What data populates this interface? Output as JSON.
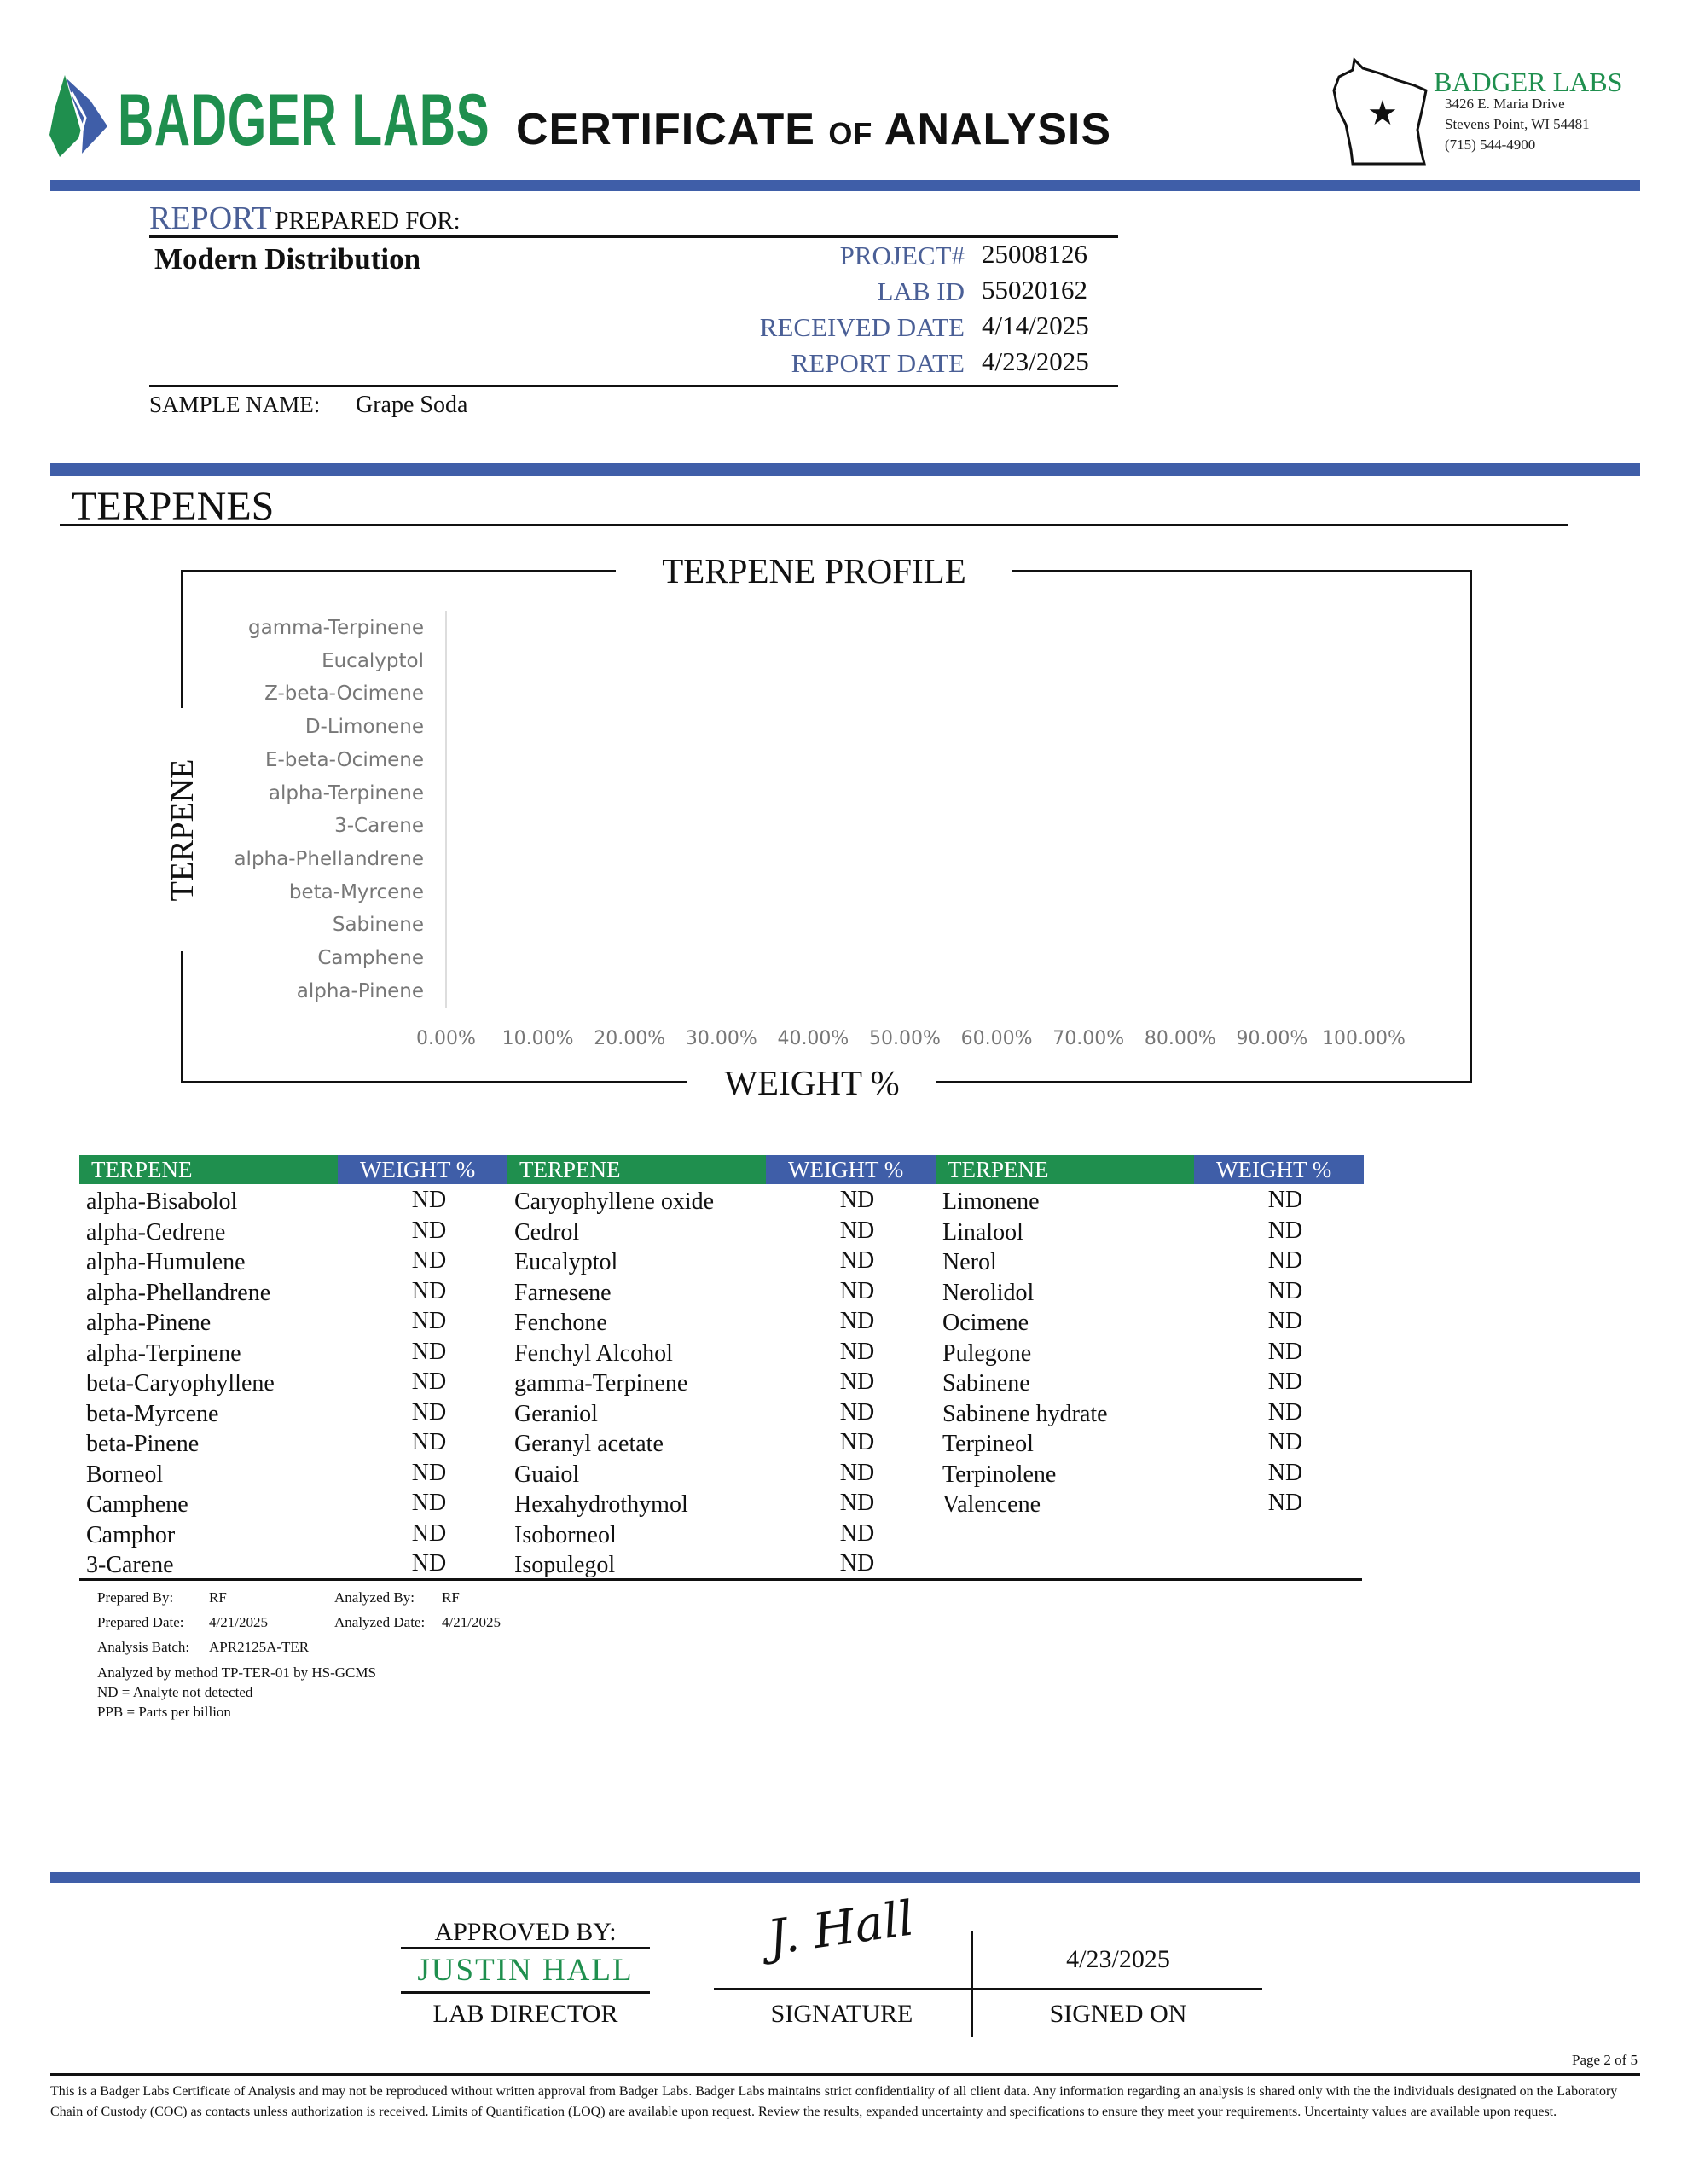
{
  "header": {
    "logo_text": "BADGER LABS",
    "title_main1": "CERTIFICATE",
    "title_of": "OF",
    "title_main2": "ANALYSIS",
    "address": {
      "name": "BADGER LABS",
      "line1": "3426 E. Maria Drive",
      "line2": "Stevens Point, WI 54481",
      "phone": "(715) 544-4900"
    }
  },
  "report": {
    "report_word": "REPORT",
    "prepared_for": "PREPARED FOR:",
    "client": "Modern Distribution",
    "fields": [
      {
        "label": "PROJECT#",
        "value": "25008126"
      },
      {
        "label": "LAB ID",
        "value": "55020162"
      },
      {
        "label": "RECEIVED DATE",
        "value": "4/14/2025"
      },
      {
        "label": "REPORT DATE",
        "value": "4/23/2025"
      }
    ],
    "sample_label": "SAMPLE NAME:",
    "sample_name": "Grape Soda"
  },
  "section_title": "TERPENES",
  "chart_data": {
    "type": "bar",
    "orientation": "horizontal",
    "title": "TERPENE PROFILE",
    "xlabel": "WEIGHT %",
    "ylabel": "TERPENE",
    "categories": [
      "gamma-Terpinene",
      "Eucalyptol",
      "Z-beta-Ocimene",
      "D-Limonene",
      "E-beta-Ocimene",
      "alpha-Terpinene",
      "3-Carene",
      "alpha-Phellandrene",
      "beta-Myrcene",
      "Sabinene",
      "Camphene",
      "alpha-Pinene"
    ],
    "values": [
      0,
      0,
      0,
      0,
      0,
      0,
      0,
      0,
      0,
      0,
      0,
      0
    ],
    "xlim": [
      0,
      100
    ],
    "xticks": [
      "0.00%",
      "10.00%",
      "20.00%",
      "30.00%",
      "40.00%",
      "50.00%",
      "60.00%",
      "70.00%",
      "80.00%",
      "90.00%",
      "100.00%"
    ],
    "grid": false
  },
  "table": {
    "col_terpene": "TERPENE",
    "col_weight": "WEIGHT %",
    "header_color_green": "#1f8f4e",
    "header_color_blue": "#3f5ea8",
    "columns": [
      [
        [
          "alpha-Bisabolol",
          "ND"
        ],
        [
          "alpha-Cedrene",
          "ND"
        ],
        [
          "alpha-Humulene",
          "ND"
        ],
        [
          "alpha-Phellandrene",
          "ND"
        ],
        [
          "alpha-Pinene",
          "ND"
        ],
        [
          "alpha-Terpinene",
          "ND"
        ],
        [
          "beta-Caryophyllene",
          "ND"
        ],
        [
          "beta-Myrcene",
          "ND"
        ],
        [
          "beta-Pinene",
          "ND"
        ],
        [
          "Borneol",
          "ND"
        ],
        [
          "Camphene",
          "ND"
        ],
        [
          "Camphor",
          "ND"
        ],
        [
          "3-Carene",
          "ND"
        ]
      ],
      [
        [
          "Caryophyllene oxide",
          "ND"
        ],
        [
          "Cedrol",
          "ND"
        ],
        [
          "Eucalyptol",
          "ND"
        ],
        [
          "Farnesene",
          "ND"
        ],
        [
          "Fenchone",
          "ND"
        ],
        [
          "Fenchyl Alcohol",
          "ND"
        ],
        [
          "gamma-Terpinene",
          "ND"
        ],
        [
          "Geraniol",
          "ND"
        ],
        [
          "Geranyl acetate",
          "ND"
        ],
        [
          "Guaiol",
          "ND"
        ],
        [
          "Hexahydrothymol",
          "ND"
        ],
        [
          "Isoborneol",
          "ND"
        ],
        [
          "Isopulegol",
          "ND"
        ]
      ],
      [
        [
          "Limonene",
          "ND"
        ],
        [
          "Linalool",
          "ND"
        ],
        [
          "Nerol",
          "ND"
        ],
        [
          "Nerolidol",
          "ND"
        ],
        [
          "Ocimene",
          "ND"
        ],
        [
          "Pulegone",
          "ND"
        ],
        [
          "Sabinene",
          "ND"
        ],
        [
          "Sabinene hydrate",
          "ND"
        ],
        [
          "Terpineol",
          "ND"
        ],
        [
          "Terpinolene",
          "ND"
        ],
        [
          "Valencene",
          "ND"
        ]
      ]
    ]
  },
  "notes": {
    "prepared_by_label": "Prepared By:",
    "prepared_by": "RF",
    "analyzed_by_label": "Analyzed By:",
    "analyzed_by": "RF",
    "prepared_date_label": "Prepared Date:",
    "prepared_date": "4/21/2025",
    "analyzed_date_label": "Analyzed Date:",
    "analyzed_date": "4/21/2025",
    "batch_label": "Analysis Batch:",
    "batch": "APR2125A-TER",
    "method": "Analyzed by method TP-TER-01 by HS-GCMS",
    "nd": "ND = Analyte not detected",
    "ppb": "PPB = Parts per billion"
  },
  "approval": {
    "approved_by": "APPROVED BY:",
    "name": "JUSTIN HALL",
    "role": "LAB DIRECTOR",
    "signature_label": "SIGNATURE",
    "signature_text": "J. Hall",
    "date": "4/23/2025",
    "signed_on": "SIGNED ON"
  },
  "footer": {
    "page": "Page 2 of 5",
    "disclaimer": "This is a Badger Labs Certificate of Analysis and may not be reproduced without written approval from Badger Labs. Badger Labs maintains strict confidentiality of all client data. Any information regarding an analysis is shared only with the the individuals designated on the Laboratory Chain of Custody (COC) as contacts unless authorization is received. Limits of Quantification (LOQ) are available upon request. Review the results, expanded uncertainty and specifications to ensure they meet your requirements. Uncertainty values are available upon request."
  }
}
